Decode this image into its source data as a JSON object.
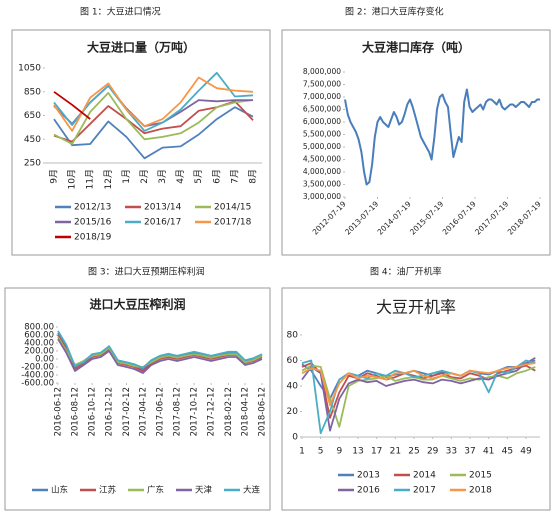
{
  "captions": [
    "图 1：大豆进口情况",
    "图 2：港口大豆库存变化",
    "图 3：进口大豆预期压榨利润",
    "图 4：油厂开机率"
  ],
  "chart_data": [
    {
      "type": "line",
      "title": "大豆进口量（万吨）",
      "categories": [
        "9月",
        "10月",
        "11月",
        "12月",
        "1月",
        "2月",
        "3月",
        "4月",
        "5月",
        "6月",
        "7月",
        "8月"
      ],
      "ylim": [
        250,
        1050
      ],
      "yticks": [
        250,
        450,
        650,
        850,
        1050
      ],
      "grid": false,
      "series": [
        {
          "name": "2012/13",
          "color": "#4f81bd",
          "values": [
            620,
            400,
            410,
            600,
            470,
            290,
            380,
            390,
            490,
            620,
            720,
            640
          ]
        },
        {
          "name": "2013/14",
          "color": "#c0504d",
          "values": [
            480,
            430,
            580,
            730,
            620,
            500,
            540,
            560,
            690,
            720,
            770,
            610
          ]
        },
        {
          "name": "2014/15",
          "color": "#9bbb59",
          "values": [
            490,
            410,
            680,
            840,
            620,
            450,
            470,
            500,
            590,
            720,
            760,
            780
          ]
        },
        {
          "name": "2015/16",
          "color": "#8064a2",
          "values": [
            730,
            580,
            760,
            900,
            710,
            560,
            590,
            680,
            780,
            770,
            780,
            780
          ]
        },
        {
          "name": "2016/17",
          "color": "#4bacc6",
          "values": [
            760,
            570,
            760,
            900,
            700,
            520,
            590,
            700,
            860,
            1010,
            810,
            820
          ]
        },
        {
          "name": "2017/18",
          "color": "#f79646",
          "values": [
            740,
            520,
            800,
            920,
            700,
            560,
            620,
            760,
            970,
            880,
            860,
            850
          ]
        },
        {
          "name": "2018/19",
          "color": "#c00000",
          "values": [
            850,
            740,
            620,
            null,
            null,
            null,
            null,
            null,
            null,
            null,
            null,
            null
          ]
        }
      ]
    },
    {
      "type": "line",
      "title": "大豆港口库存（吨）",
      "color": "#4a7ebb",
      "x": [
        "2012-07-19",
        "2012-08-19",
        "2012-09-19",
        "2012-10-19",
        "2012-11-19",
        "2012-12-19",
        "2013-01-19",
        "2013-02-19",
        "2013-03-19",
        "2013-04-19",
        "2013-05-19",
        "2013-06-19",
        "2013-07-19",
        "2013-08-19",
        "2013-09-19",
        "2013-10-19",
        "2013-11-19",
        "2013-12-19",
        "2014-01-19",
        "2014-02-19",
        "2014-03-19",
        "2014-04-19",
        "2014-05-19",
        "2014-06-19",
        "2014-07-19",
        "2014-08-19",
        "2014-09-19",
        "2014-10-19",
        "2014-11-19",
        "2014-12-19",
        "2015-01-19",
        "2015-02-19",
        "2015-03-19",
        "2015-04-19",
        "2015-05-19",
        "2015-06-19",
        "2015-07-19",
        "2015-08-19",
        "2015-09-19",
        "2015-10-19",
        "2015-11-19",
        "2015-12-19",
        "2016-01-19",
        "2016-02-19",
        "2016-03-19",
        "2016-04-19",
        "2016-05-19",
        "2016-06-19",
        "2016-07-19",
        "2016-08-19",
        "2016-09-19",
        "2016-10-19",
        "2016-11-19",
        "2016-12-19",
        "2017-01-19",
        "2017-02-19",
        "2017-03-19",
        "2017-04-19",
        "2017-05-19",
        "2017-06-19",
        "2017-07-19",
        "2017-08-19",
        "2017-09-19",
        "2017-10-19",
        "2017-11-19",
        "2017-12-19",
        "2018-01-19",
        "2018-02-19",
        "2018-03-19",
        "2018-04-19",
        "2018-05-19",
        "2018-06-19",
        "2018-07-19"
      ],
      "values": [
        6900000,
        6300000,
        6000000,
        5800000,
        5600000,
        5300000,
        4800000,
        4000000,
        3500000,
        3600000,
        4300000,
        5400000,
        6000000,
        6200000,
        6000000,
        5900000,
        5800000,
        6100000,
        6400000,
        6200000,
        5900000,
        6000000,
        6300000,
        6700000,
        6900000,
        6600000,
        6200000,
        5800000,
        5400000,
        5200000,
        5000000,
        4800000,
        4500000,
        5400000,
        6500000,
        7000000,
        7100000,
        6800000,
        6600000,
        5600000,
        4600000,
        5000000,
        5400000,
        5200000,
        6800000,
        7300000,
        6600000,
        6400000,
        6500000,
        6600000,
        6700000,
        6500000,
        6800000,
        6900000,
        6900000,
        6800000,
        6700000,
        6900000,
        6600000,
        6500000,
        6600000,
        6700000,
        6700000,
        6600000,
        6700000,
        6800000,
        6800000,
        6700000,
        6600000,
        6800000,
        6800000,
        6900000,
        6900000
      ],
      "xlim": [
        "2012-07-19",
        "2018-07-19"
      ],
      "xticks": [
        "2012-07-19",
        "2013-07-19",
        "2014-07-19",
        "2015-07-19",
        "2016-07-19",
        "2017-07-19",
        "2018-07-19"
      ],
      "ylim": [
        3000000,
        8000000
      ],
      "yticks": [
        {
          "value": 3000000,
          "label": "3,000,000"
        },
        {
          "value": 3500000,
          "label": "3,500,000"
        },
        {
          "value": 4000000,
          "label": "4,000,000"
        },
        {
          "value": 4500000,
          "label": "4,500,000"
        },
        {
          "value": 5000000,
          "label": "5,000,000"
        },
        {
          "value": 5500000,
          "label": "5,500,000"
        },
        {
          "value": 6000000,
          "label": "6,000,000"
        },
        {
          "value": 6500000,
          "label": "6,500,000"
        },
        {
          "value": 7000000,
          "label": "7,000,000"
        },
        {
          "value": 7500000,
          "label": "7,500,000"
        },
        {
          "value": 8000000,
          "label": "8,000,000"
        }
      ],
      "grid": false
    },
    {
      "type": "line",
      "title": "进口大豆压榨利润",
      "x": [
        "2016-06-12",
        "2016-07-12",
        "2016-08-12",
        "2016-09-12",
        "2016-10-12",
        "2016-11-12",
        "2016-12-12",
        "2017-01-12",
        "2017-02-12",
        "2017-03-12",
        "2017-04-12",
        "2017-05-12",
        "2017-06-12",
        "2017-07-12",
        "2017-08-12",
        "2017-09-12",
        "2017-10-12",
        "2017-11-12",
        "2017-12-12",
        "2018-01-12",
        "2018-02-12",
        "2018-03-12",
        "2018-04-12",
        "2018-05-12",
        "2018-06-12"
      ],
      "xlim": [
        "2016-06-12",
        "2018-06-12"
      ],
      "xticks": [
        "2016-06-12",
        "2016-08-12",
        "2016-10-12",
        "2016-12-12",
        "2017-02-12",
        "2017-04-12",
        "2017-06-12",
        "2017-08-12",
        "2017-10-12",
        "2017-12-12",
        "2018-02-12",
        "2018-04-12",
        "2018-06-12"
      ],
      "ylim": [
        -600,
        800
      ],
      "yticks": [
        {
          "value": -600,
          "label": "-600.00"
        },
        {
          "value": -400,
          "label": "-400.00"
        },
        {
          "value": -200,
          "label": "-200.00"
        },
        {
          "value": 0,
          "label": "0.00"
        },
        {
          "value": 200,
          "label": "200.00"
        },
        {
          "value": 400,
          "label": "400.00"
        },
        {
          "value": 600,
          "label": "600.00"
        },
        {
          "value": 800,
          "label": "800.00"
        }
      ],
      "grid": false,
      "series": [
        {
          "name": "山东",
          "color": "#4f81bd",
          "values": [
            650,
            300,
            -200,
            -50,
            100,
            150,
            300,
            -50,
            -100,
            -150,
            -250,
            -50,
            50,
            100,
            50,
            100,
            150,
            100,
            50,
            100,
            150,
            150,
            -50,
            0,
            100
          ]
        },
        {
          "name": "江苏",
          "color": "#c0504d",
          "values": [
            600,
            250,
            -250,
            -100,
            50,
            100,
            250,
            -100,
            -150,
            -200,
            -300,
            -100,
            0,
            50,
            0,
            50,
            100,
            50,
            0,
            50,
            100,
            100,
            -100,
            -50,
            50
          ]
        },
        {
          "name": "广东",
          "color": "#9bbb59",
          "values": [
            550,
            200,
            -150,
            -50,
            80,
            120,
            280,
            -80,
            -120,
            -180,
            -200,
            -80,
            30,
            80,
            30,
            80,
            120,
            80,
            30,
            80,
            120,
            120,
            -80,
            -30,
            80
          ]
        },
        {
          "name": "天津",
          "color": "#8064a2",
          "values": [
            500,
            150,
            -300,
            -150,
            0,
            50,
            200,
            -150,
            -200,
            -250,
            -350,
            -150,
            -50,
            0,
            -50,
            0,
            50,
            0,
            -50,
            0,
            50,
            50,
            -150,
            -100,
            0
          ]
        },
        {
          "name": "大连",
          "color": "#4bacc6",
          "values": [
            700,
            350,
            -180,
            -80,
            120,
            160,
            320,
            -30,
            -80,
            -130,
            -220,
            -30,
            80,
            130,
            80,
            130,
            180,
            130,
            80,
            130,
            180,
            180,
            -30,
            20,
            120
          ]
        }
      ]
    },
    {
      "type": "line",
      "title": "大豆开机率",
      "x": [
        1,
        3,
        5,
        7,
        9,
        11,
        13,
        15,
        17,
        19,
        21,
        23,
        25,
        27,
        29,
        31,
        33,
        35,
        37,
        39,
        41,
        43,
        45,
        47,
        49,
        51
      ],
      "xlim": [
        1,
        52
      ],
      "xticks": [
        1,
        5,
        9,
        13,
        17,
        21,
        25,
        29,
        33,
        37,
        41,
        45,
        49
      ],
      "ylim": [
        0,
        80
      ],
      "yticks": [
        0,
        20,
        40,
        60,
        80
      ],
      "grid": false,
      "series": [
        {
          "name": "2013",
          "color": "#4f81bd",
          "values": [
            57,
            52,
            40,
            30,
            45,
            50,
            48,
            52,
            50,
            47,
            49,
            50,
            52,
            50,
            48,
            51,
            50,
            48,
            52,
            50,
            49,
            52,
            55,
            55,
            58,
            60
          ]
        },
        {
          "name": "2014",
          "color": "#c0504d",
          "values": [
            55,
            58,
            50,
            15,
            35,
            48,
            46,
            50,
            48,
            45,
            47,
            50,
            48,
            46,
            48,
            50,
            47,
            46,
            50,
            48,
            45,
            50,
            52,
            54,
            56,
            52
          ]
        },
        {
          "name": "2015",
          "color": "#9bbb59",
          "values": [
            52,
            56,
            55,
            30,
            8,
            40,
            44,
            45,
            46,
            48,
            44,
            46,
            47,
            45,
            45,
            48,
            46,
            44,
            46,
            45,
            47,
            48,
            46,
            50,
            52,
            55
          ]
        },
        {
          "name": "2016",
          "color": "#8064a2",
          "values": [
            45,
            55,
            50,
            5,
            30,
            42,
            45,
            43,
            44,
            40,
            42,
            44,
            45,
            43,
            42,
            45,
            44,
            42,
            44,
            46,
            45,
            48,
            50,
            52,
            58,
            62
          ]
        },
        {
          "name": "2017",
          "color": "#4bacc6",
          "values": [
            58,
            60,
            3,
            20,
            45,
            50,
            48,
            46,
            50,
            48,
            52,
            50,
            47,
            48,
            50,
            52,
            50,
            48,
            52,
            50,
            35,
            52,
            50,
            55,
            60,
            58
          ]
        },
        {
          "name": "2018",
          "color": "#f79646",
          "values": [
            50,
            54,
            52,
            25,
            42,
            50,
            46,
            48,
            47,
            45,
            50,
            50,
            52,
            48,
            46,
            48,
            50,
            48,
            52,
            51,
            50,
            52,
            54,
            55,
            57,
            58
          ]
        }
      ]
    }
  ]
}
